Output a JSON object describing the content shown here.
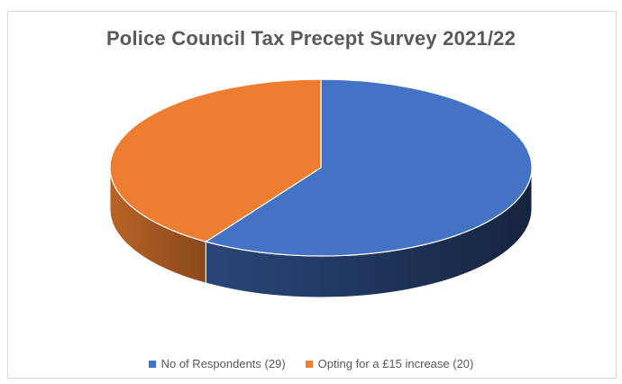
{
  "chart_data": {
    "type": "pie",
    "title": "Police Council Tax Precept Survey 2021/22",
    "categories": [
      "No of Respondents (29)",
      "Opting for a £15 increase (20)"
    ],
    "values": [
      29,
      20
    ],
    "legend_position": "bottom",
    "style": "3d",
    "colors": [
      "#4472c4",
      "#ed7d31"
    ]
  }
}
